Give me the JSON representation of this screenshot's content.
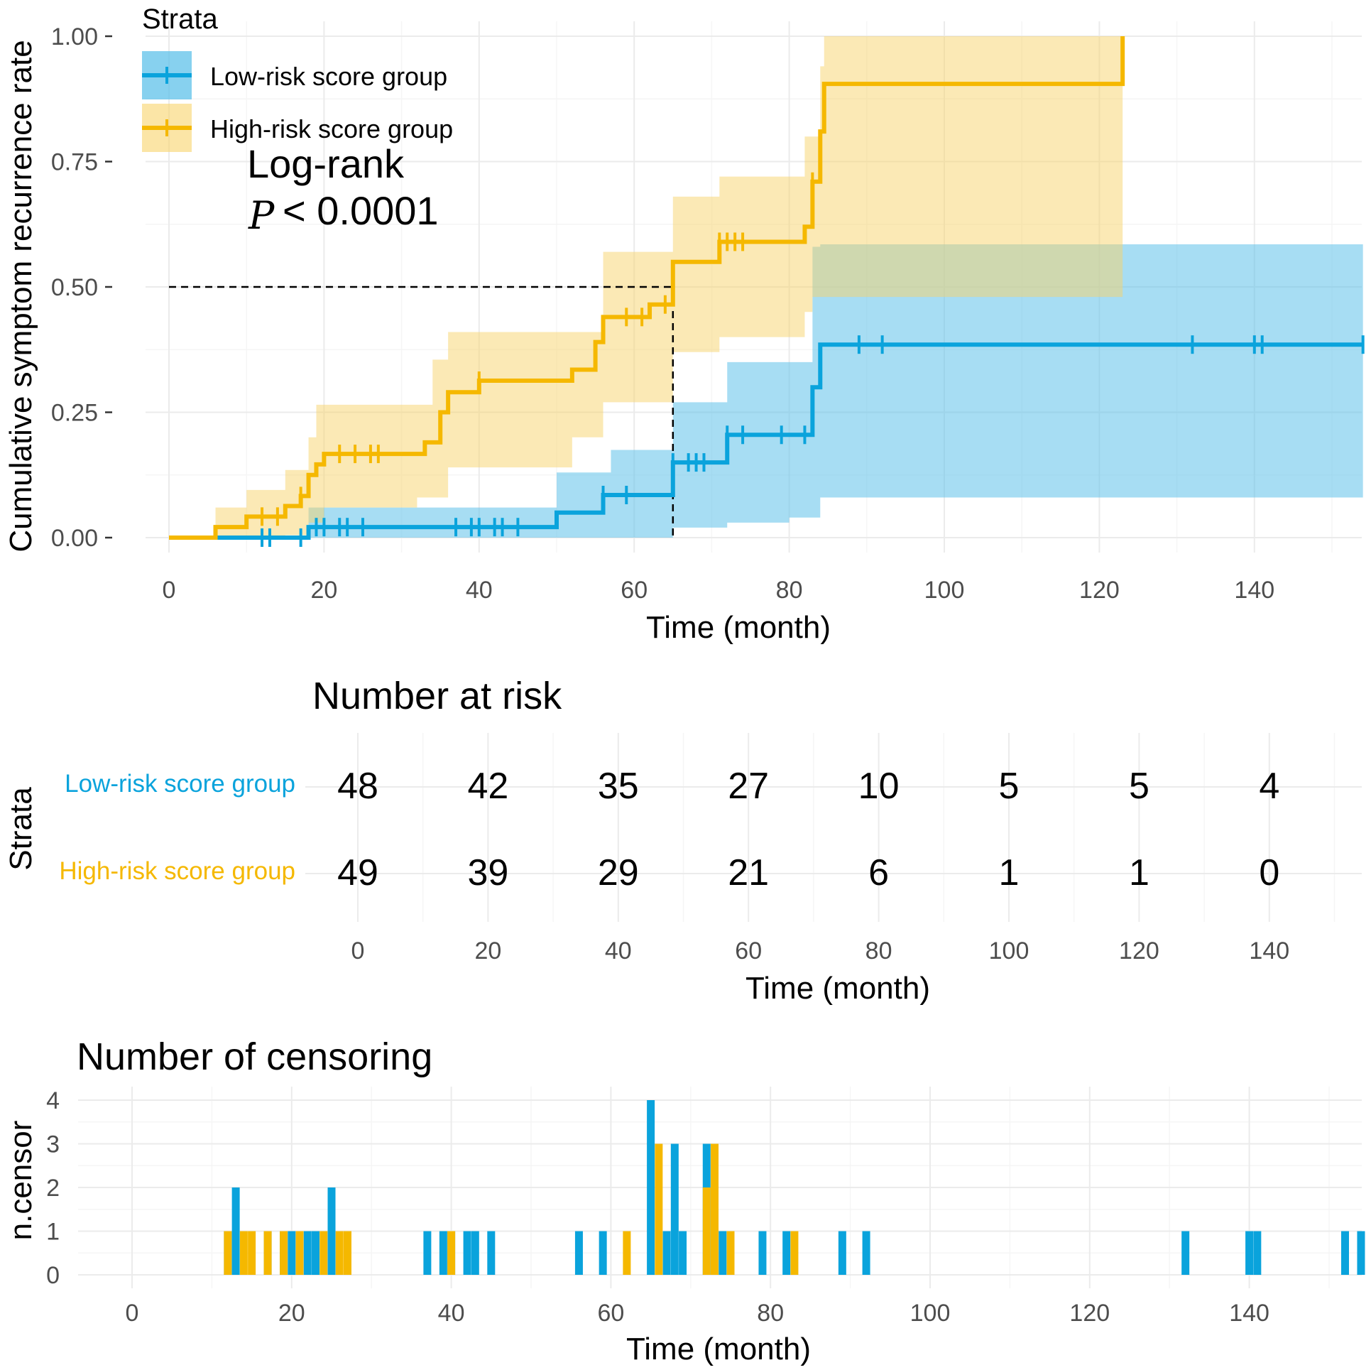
{
  "colors": {
    "low": "#0aa3dc",
    "high": "#f5b800",
    "low_fill": "#5fc1ea",
    "high_fill": "#f8d36b"
  },
  "legend": {
    "title": "Strata",
    "items": [
      "Low-risk score group",
      "High-risk score group"
    ]
  },
  "annotation": {
    "line1": "Log-rank",
    "p_symbol": "P",
    "p_rest": "< 0.0001"
  },
  "chart_data": [
    {
      "type": "line",
      "title": "",
      "xlabel": "Time (month)",
      "ylabel": "Cumulative symptom recurrence rate",
      "xlim": [
        0,
        154
      ],
      "ylim": [
        0,
        1
      ],
      "xticks": [
        0,
        20,
        40,
        60,
        80,
        100,
        120,
        140
      ],
      "yticks": [
        0,
        0.25,
        0.5,
        0.75,
        1.0
      ],
      "ytick_labels": [
        "0.00",
        "0.25",
        "0.50",
        "0.75",
        "1.00"
      ],
      "median_line": {
        "y": 0.5,
        "x": 65
      },
      "series": [
        {
          "name": "Low-risk score group",
          "steps": [
            [
              0,
              0
            ],
            [
              18,
              0.021
            ],
            [
              50,
              0.05
            ],
            [
              56,
              0.085
            ],
            [
              65,
              0.15
            ],
            [
              72,
              0.205
            ],
            [
              83,
              0.3
            ],
            [
              84,
              0.385
            ],
            [
              154,
              0.385
            ]
          ],
          "ci_upper": [
            [
              0,
              0
            ],
            [
              18,
              0.06
            ],
            [
              50,
              0.13
            ],
            [
              57,
              0.175
            ],
            [
              65,
              0.27
            ],
            [
              72,
              0.35
            ],
            [
              83,
              0.58
            ],
            [
              84,
              0.585
            ],
            [
              154,
              0.585
            ]
          ],
          "ci_lower": [
            [
              0,
              0
            ],
            [
              18,
              0
            ],
            [
              65,
              0.02
            ],
            [
              72,
              0.03
            ],
            [
              80,
              0.04
            ],
            [
              84,
              0.08
            ],
            [
              154,
              0.08
            ]
          ],
          "censor_times": [
            12,
            13,
            17,
            19,
            20,
            22,
            23,
            25,
            37,
            39,
            40,
            42,
            43,
            45,
            56,
            59,
            65,
            67,
            68,
            69,
            72,
            74,
            79,
            82,
            89,
            92,
            132,
            140,
            141,
            154
          ]
        },
        {
          "name": "High-risk score group",
          "steps": [
            [
              0,
              0
            ],
            [
              6,
              0.021
            ],
            [
              10,
              0.042
            ],
            [
              15,
              0.063
            ],
            [
              17,
              0.083
            ],
            [
              18,
              0.125
            ],
            [
              19,
              0.146
            ],
            [
              20,
              0.167
            ],
            [
              33,
              0.19
            ],
            [
              35,
              0.25
            ],
            [
              36,
              0.29
            ],
            [
              40,
              0.313
            ],
            [
              52,
              0.335
            ],
            [
              55,
              0.39
            ],
            [
              56,
              0.44
            ],
            [
              62,
              0.465
            ],
            [
              65,
              0.55
            ],
            [
              71,
              0.59
            ],
            [
              82,
              0.62
            ],
            [
              83,
              0.71
            ],
            [
              84,
              0.81
            ],
            [
              84.5,
              0.905
            ],
            [
              123,
              1.0
            ]
          ],
          "ci_upper": [
            [
              0,
              0
            ],
            [
              6,
              0.06
            ],
            [
              10,
              0.095
            ],
            [
              15,
              0.135
            ],
            [
              18,
              0.2
            ],
            [
              19,
              0.265
            ],
            [
              34,
              0.355
            ],
            [
              36,
              0.41
            ],
            [
              56,
              0.57
            ],
            [
              65,
              0.68
            ],
            [
              71,
              0.72
            ],
            [
              82,
              0.8
            ],
            [
              84,
              0.94
            ],
            [
              84.5,
              1.0
            ],
            [
              123,
              1.0
            ]
          ],
          "ci_lower": [
            [
              0,
              0
            ],
            [
              15,
              0.005
            ],
            [
              18,
              0.03
            ],
            [
              20,
              0.06
            ],
            [
              32,
              0.08
            ],
            [
              36,
              0.14
            ],
            [
              52,
              0.2
            ],
            [
              56,
              0.27
            ],
            [
              65,
              0.37
            ],
            [
              71,
              0.4
            ],
            [
              82,
              0.45
            ],
            [
              83,
              0.48
            ],
            [
              123,
              0.48
            ]
          ],
          "censor_times": [
            12,
            14,
            17,
            22,
            24,
            26,
            27,
            40,
            59,
            61,
            64,
            71,
            72,
            73,
            74,
            83
          ]
        }
      ]
    },
    {
      "type": "table",
      "title": "Number at risk",
      "xlabel": "Time (month)",
      "ylabel": "Strata",
      "times": [
        0,
        20,
        40,
        60,
        80,
        100,
        120,
        140
      ],
      "rows": [
        {
          "name": "Low-risk score group",
          "values": [
            "48",
            "42",
            "35",
            "27",
            "10",
            "5",
            "5",
            "4"
          ]
        },
        {
          "name": "High-risk score group",
          "values": [
            "49",
            "39",
            "29",
            "21",
            "6",
            "1",
            "1",
            "0"
          ]
        }
      ]
    },
    {
      "type": "bar",
      "title": "Number of censoring",
      "xlabel": "Time (month)",
      "ylabel": "n.censor",
      "xlim": [
        -5,
        154
      ],
      "ylim": [
        0,
        4
      ],
      "xticks": [
        0,
        20,
        40,
        60,
        80,
        100,
        120,
        140
      ],
      "yticks": [
        0,
        1,
        2,
        3,
        4
      ],
      "series": [
        {
          "name": "Low-risk score group",
          "bars": [
            [
              12,
              1
            ],
            [
              13,
              2
            ],
            [
              17,
              1
            ],
            [
              19,
              1
            ],
            [
              20,
              1
            ],
            [
              22,
              1
            ],
            [
              23,
              1
            ],
            [
              25,
              2
            ],
            [
              37,
              1
            ],
            [
              39,
              1
            ],
            [
              40,
              1
            ],
            [
              42,
              1
            ],
            [
              43,
              1
            ],
            [
              45,
              1
            ],
            [
              56,
              1
            ],
            [
              59,
              1
            ],
            [
              65,
              4
            ],
            [
              67,
              1
            ],
            [
              68,
              3
            ],
            [
              69,
              1
            ],
            [
              72,
              3
            ],
            [
              74,
              1
            ],
            [
              79,
              1
            ],
            [
              82,
              1
            ],
            [
              89,
              1
            ],
            [
              92,
              1
            ],
            [
              132,
              1
            ],
            [
              140,
              1
            ],
            [
              141,
              1
            ],
            [
              152,
              1
            ],
            [
              154,
              1
            ]
          ]
        },
        {
          "name": "High-risk score group",
          "bars": [
            [
              12,
              1
            ],
            [
              14,
              1
            ],
            [
              15,
              1
            ],
            [
              17,
              1
            ],
            [
              19,
              1
            ],
            [
              21,
              1
            ],
            [
              24,
              1
            ],
            [
              26,
              1
            ],
            [
              27,
              1
            ],
            [
              40,
              1
            ],
            [
              62,
              1
            ],
            [
              66,
              3
            ],
            [
              72,
              2
            ],
            [
              73,
              3
            ],
            [
              75,
              1
            ],
            [
              83,
              1
            ]
          ]
        }
      ]
    }
  ]
}
